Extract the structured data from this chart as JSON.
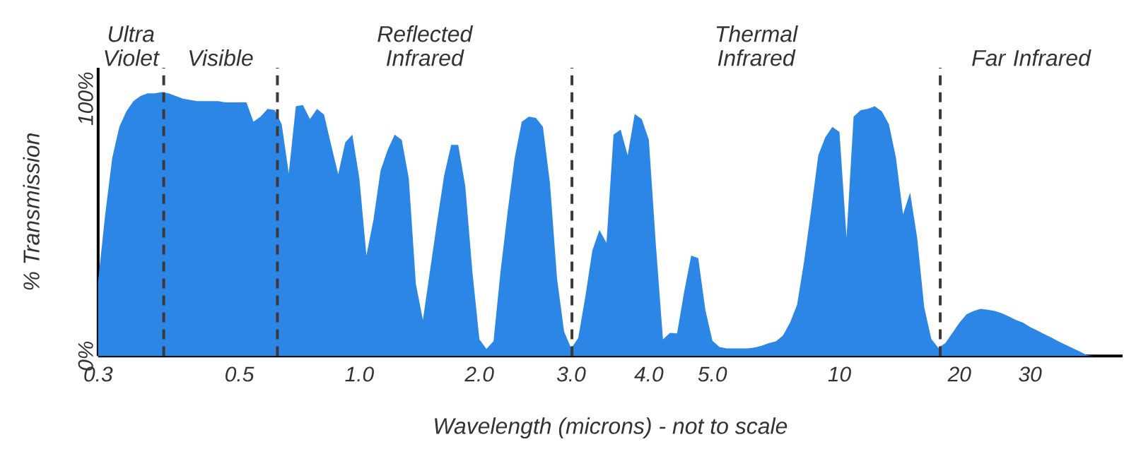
{
  "chart_data": {
    "type": "area",
    "xlabel": "Wavelength (microns) - not to scale",
    "ylabel": "% Transmission",
    "color": "#2c86e6",
    "categories": [
      "0.3",
      null,
      null,
      null,
      null,
      null,
      null,
      null,
      null,
      null,
      null,
      null,
      null,
      null,
      null,
      null,
      null,
      null,
      null,
      null,
      "0.5",
      null,
      null,
      null,
      null,
      null,
      null,
      null,
      null,
      null,
      null,
      null,
      null,
      null,
      null,
      null,
      null,
      "1.0",
      null,
      null,
      null,
      null,
      null,
      null,
      null,
      null,
      null,
      null,
      null,
      null,
      null,
      null,
      null,
      null,
      "2.0",
      null,
      null,
      null,
      null,
      null,
      null,
      null,
      null,
      null,
      null,
      null,
      null,
      "3.0",
      null,
      null,
      null,
      null,
      null,
      null,
      null,
      null,
      null,
      null,
      "4.0",
      null,
      null,
      null,
      null,
      null,
      null,
      null,
      null,
      "5.0",
      null,
      null,
      null,
      null,
      null,
      null,
      null,
      null,
      null,
      null,
      null,
      null,
      null,
      null,
      null,
      null,
      null,
      "10",
      null,
      null,
      null,
      null,
      null,
      null,
      null,
      null,
      null,
      null,
      null,
      null,
      null,
      null,
      null,
      null,
      "20",
      null,
      null,
      null,
      null,
      null,
      null,
      null,
      null,
      null,
      "30",
      null,
      null,
      null,
      null,
      null,
      null,
      null,
      null,
      null,
      null,
      null,
      null,
      null
    ],
    "values": [
      29,
      55,
      77,
      89,
      95,
      99,
      101,
      102,
      102,
      102.5,
      102,
      101,
      100,
      99.5,
      99,
      99,
      99,
      99,
      98.5,
      98.5,
      98.5,
      98.5,
      91,
      93,
      96,
      95.6,
      90,
      71,
      97,
      97.5,
      92,
      96,
      93.7,
      82,
      70.6,
      83,
      86,
      69,
      39,
      53,
      72,
      80,
      86,
      84,
      69,
      28,
      14,
      33,
      52,
      70,
      82,
      82,
      66,
      33,
      6.5,
      2.8,
      5.8,
      33,
      56,
      77,
      91,
      93,
      92.5,
      89,
      67,
      30,
      9.5,
      3,
      7,
      23,
      41,
      49,
      44,
      86,
      88,
      78,
      94,
      92,
      84,
      43,
      6.5,
      9,
      8.8,
      25,
      39,
      38,
      18,
      6,
      3.5,
      3,
      3,
      3,
      3,
      3.3,
      4,
      5,
      5.7,
      8,
      13,
      20,
      37,
      57,
      78,
      85,
      89,
      87,
      46,
      93,
      95.5,
      96,
      97,
      95,
      90,
      77,
      55,
      63.5,
      46,
      19,
      6.7,
      3.2,
      5,
      9,
      13,
      16.2,
      17.5,
      18.3,
      18,
      17.5,
      16.6,
      15.4,
      14,
      13,
      11.3,
      10,
      8.5,
      7.2,
      5.7,
      4.4,
      3.1,
      1.8,
      0.4,
      0,
      0,
      0,
      0,
      0
    ],
    "ylim": [
      0,
      112
    ],
    "yticks": [
      {
        "value": 0,
        "label": "0%"
      },
      {
        "value": 100,
        "label": "100%"
      }
    ],
    "annotations": [
      "Ultra Violet",
      "Visible",
      "Reflected Infrared",
      "Thermal Infrared",
      "Far Infrared"
    ]
  }
}
